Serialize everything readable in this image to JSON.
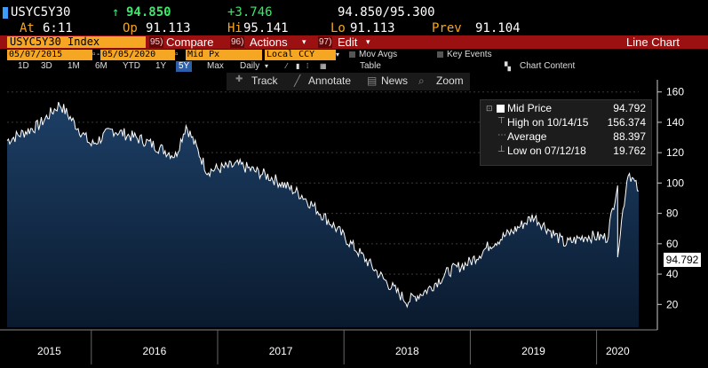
{
  "quote": {
    "ticker": "USYC5Y30",
    "arrow": "↑",
    "last": "94.850",
    "change": "+3.746",
    "bid_ask": "94.850/95.300",
    "at_label": "At",
    "at_time": "6:11",
    "open_label": "Op",
    "open": "91.113",
    "high_label": "Hi",
    "high": "95.141",
    "low_label": "Lo",
    "low": "91.113",
    "prev_label": "Prev",
    "prev": "91.104"
  },
  "command_bar": {
    "security": "USYC5Y30 Index",
    "compare_num": "95)",
    "compare_label": "Compare",
    "actions_num": "96)",
    "actions_label": "Actions",
    "edit_num": "97)",
    "edit_label": "Edit",
    "chart_type": "Line Chart"
  },
  "params": {
    "start_date": "05/07/2015",
    "end_date": "05/05/2020",
    "field": "Mid Px",
    "currency": "Local CCY",
    "mov_avgs": "Mov Avgs",
    "key_events": "Key Events"
  },
  "ranges": {
    "items": [
      "1D",
      "3D",
      "1M",
      "6M",
      "YTD",
      "1Y",
      "5Y",
      "Max"
    ],
    "active": "5Y",
    "period": "Daily",
    "table": "Table",
    "chart_content": "Chart Content"
  },
  "toolbar": {
    "track": "Track",
    "annotate": "Annotate",
    "news": "News",
    "zoom": "Zoom"
  },
  "legend": {
    "series": "Mid Price",
    "series_value": "94.792",
    "high_label": "High on 10/14/15",
    "high_value": "156.374",
    "avg_label": "Average",
    "avg_value": "88.397",
    "low_label": "Low on 07/12/18",
    "low_value": "19.762"
  },
  "last_price_tag": "94.792",
  "colors": {
    "accent": "#f5a623",
    "command_bar": "#9b1111",
    "up": "#3ee86b",
    "area_top": "#1d3f66",
    "area_bottom": "#0a1a2e"
  },
  "chart_data": {
    "type": "area",
    "x_tick_labels": [
      "2015",
      "2016",
      "2017",
      "2018",
      "2019",
      "2020"
    ],
    "y_ticks": [
      20,
      40,
      60,
      80,
      100,
      120,
      140,
      160
    ],
    "ylim": [
      5,
      168
    ],
    "x": [
      "2015-05",
      "2015-08",
      "2015-10",
      "2016-01",
      "2016-03",
      "2016-06",
      "2016-09",
      "2016-10",
      "2016-12",
      "2017-03",
      "2017-06",
      "2017-09",
      "2017-12",
      "2018-03",
      "2018-05",
      "2018-07",
      "2018-09",
      "2018-11",
      "2019-01",
      "2019-03",
      "2019-05",
      "2019-07",
      "2019-08",
      "2019-10",
      "2019-12",
      "2020-02",
      "2020-03",
      "2020-03",
      "2020-04",
      "2020-05"
    ],
    "series": [
      {
        "name": "Mid Price",
        "values": [
          128,
          138,
          152,
          125,
          135,
          128,
          118,
          138,
          108,
          112,
          104,
          92,
          72,
          50,
          35,
          22,
          30,
          42,
          48,
          60,
          68,
          78,
          72,
          60,
          65,
          64,
          100,
          55,
          108,
          94.8
        ]
      }
    ]
  }
}
